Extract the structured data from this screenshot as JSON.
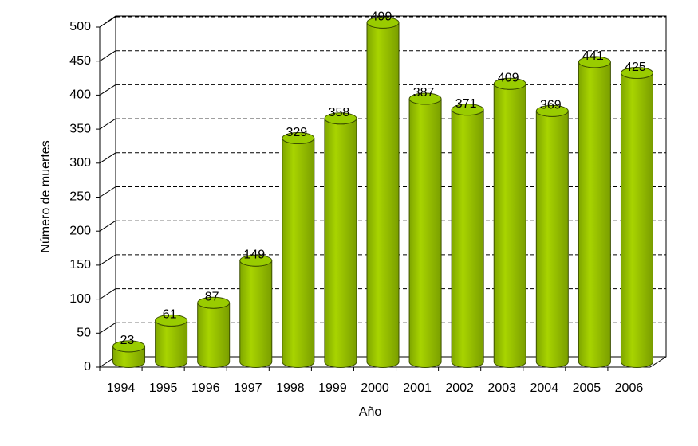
{
  "chart_data": {
    "type": "bar3d",
    "x_label": "Año",
    "y_label": "Número de muertes",
    "categories": [
      "1994",
      "1995",
      "1996",
      "1997",
      "1998",
      "1999",
      "2000",
      "2001",
      "2002",
      "2003",
      "2004",
      "2005",
      "2006"
    ],
    "values": [
      23,
      61,
      87,
      149,
      329,
      358,
      499,
      387,
      371,
      409,
      369,
      441,
      425
    ],
    "color": "#99cc00",
    "ylim": [
      0,
      500
    ],
    "yticks": [
      0,
      50,
      100,
      150,
      200,
      250,
      300,
      350,
      400,
      450,
      500
    ],
    "grid": true
  }
}
